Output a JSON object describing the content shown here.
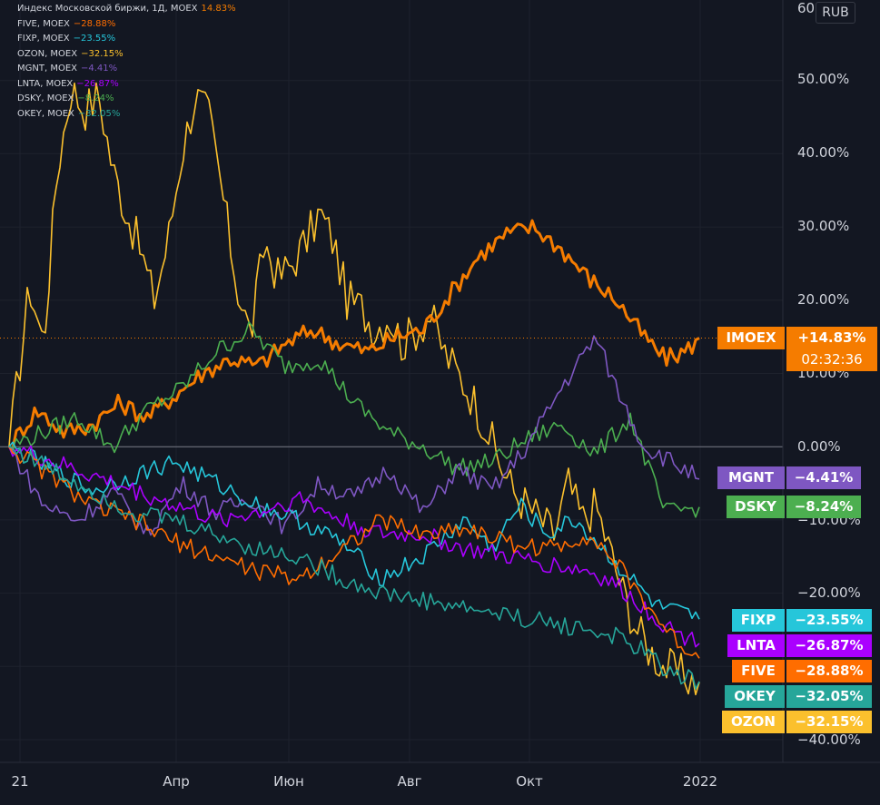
{
  "legend": [
    {
      "label": "Индекс Московской биржи, 1Д, MOEX",
      "value": "14.83%",
      "color": "#f57c00"
    },
    {
      "label": "FIVE, MOEX",
      "value": "−28.88%",
      "color": "#ff6d00"
    },
    {
      "label": "FIXP, MOEX",
      "value": "−23.55%",
      "color": "#26c6da"
    },
    {
      "label": "OZON, MOEX",
      "value": "−32.15%",
      "color": "#fbc02d"
    },
    {
      "label": "MGNT, MOEX",
      "value": "−4.41%",
      "color": "#7e57c2"
    },
    {
      "label": "LNTA, MOEX",
      "value": "−26.87%",
      "color": "#aa00ff"
    },
    {
      "label": "DSKY, MOEX",
      "value": "−8.24%",
      "color": "#4caf50"
    },
    {
      "label": "OKEY, MOEX",
      "value": "−32.05%",
      "color": "#26a69a"
    }
  ],
  "currency": "RUB",
  "y_ticks": [
    "60",
    "50.00%",
    "40.00%",
    "30.00%",
    "20.00%",
    "10.00%",
    "0.00%",
    "−10.00%",
    "−20.00%",
    "−40.00%"
  ],
  "x_ticks": [
    "21",
    "Апр",
    "Июн",
    "Авг",
    "Окт",
    "2022"
  ],
  "price_tags": [
    {
      "ticker": "IMOEX",
      "value": "+14.83%",
      "extra": "02:32:36",
      "color": "#f57c00"
    },
    {
      "ticker": "MGNT",
      "value": "−4.41%",
      "color": "#7e57c2"
    },
    {
      "ticker": "DSKY",
      "value": "−8.24%",
      "color": "#4caf50"
    },
    {
      "ticker": "FIXP",
      "value": "−23.55%",
      "color": "#26c6da"
    },
    {
      "ticker": "LNTA",
      "value": "−26.87%",
      "color": "#aa00ff"
    },
    {
      "ticker": "FIVE",
      "value": "−28.88%",
      "color": "#ff6d00"
    },
    {
      "ticker": "OKEY",
      "value": "−32.05%",
      "color": "#26a69a"
    },
    {
      "ticker": "OZON",
      "value": "−32.15%",
      "color": "#fbc02d"
    }
  ],
  "chart_data": {
    "type": "line",
    "ylim": [
      -40,
      60
    ],
    "series": [
      {
        "name": "OZON, MOEX",
        "color": "#fbc02d",
        "x": [
          0,
          0.03,
          0.05,
          0.07,
          0.09,
          0.11,
          0.13,
          0.15,
          0.17,
          0.19,
          0.21,
          0.23,
          0.25,
          0.27,
          0.29,
          0.31,
          0.33,
          0.35,
          0.37,
          0.39,
          0.41,
          0.43,
          0.45,
          0.47,
          0.49,
          0.51,
          0.53,
          0.55,
          0.57,
          0.59,
          0.61,
          0.63,
          0.65,
          0.67,
          0.69,
          0.71,
          0.73,
          0.75,
          0.77,
          0.79,
          0.81,
          0.83,
          0.85,
          0.87,
          0.89,
          0.91,
          0.93,
          0.95,
          0.97,
          1.0
        ],
        "y": [
          0,
          22,
          14,
          38,
          49,
          46,
          48,
          38,
          32,
          27,
          20,
          28,
          40,
          48,
          45,
          34,
          22,
          15,
          28,
          23,
          25,
          28,
          32,
          28,
          20,
          19,
          16,
          18,
          14,
          16,
          18,
          13,
          10,
          7,
          3,
          -2,
          -6,
          -8,
          -10,
          -12,
          -5,
          -10,
          -8,
          -14,
          -20,
          -25,
          -28,
          -30,
          -31,
          -32.15
        ]
      },
      {
        "name": "Индекс Московской биржи, 1Д, MOEX",
        "color": "#f57c00",
        "x": [
          0,
          0.04,
          0.08,
          0.12,
          0.16,
          0.2,
          0.24,
          0.28,
          0.32,
          0.36,
          0.4,
          0.44,
          0.48,
          0.52,
          0.56,
          0.6,
          0.64,
          0.68,
          0.72,
          0.76,
          0.8,
          0.84,
          0.88,
          0.92,
          0.95,
          0.98,
          1.0
        ],
        "y": [
          0,
          5,
          2,
          3,
          6,
          4,
          7,
          10,
          12,
          11,
          14,
          16,
          14,
          13,
          15,
          16,
          21,
          26,
          29,
          30,
          27,
          23,
          20,
          15,
          12,
          13,
          14.83
        ]
      },
      {
        "name": "DSKY, MOEX",
        "color": "#4caf50",
        "x": [
          0,
          0.05,
          0.1,
          0.15,
          0.2,
          0.25,
          0.3,
          0.35,
          0.4,
          0.45,
          0.5,
          0.55,
          0.6,
          0.65,
          0.7,
          0.75,
          0.8,
          0.85,
          0.9,
          0.95,
          1.0
        ],
        "y": [
          0,
          2,
          4,
          0,
          5,
          8,
          13,
          16,
          11,
          12,
          6,
          2,
          0,
          -3,
          -2,
          1,
          3,
          -1,
          4,
          -9,
          -8.24
        ]
      },
      {
        "name": "MGNT, MOEX",
        "color": "#7e57c2",
        "x": [
          0,
          0.05,
          0.1,
          0.15,
          0.2,
          0.25,
          0.3,
          0.35,
          0.4,
          0.45,
          0.5,
          0.55,
          0.6,
          0.65,
          0.7,
          0.75,
          0.8,
          0.85,
          0.88,
          0.92,
          0.96,
          1.0
        ],
        "y": [
          0,
          -8,
          -10,
          -6,
          -12,
          -5,
          -9,
          -7,
          -11,
          -5,
          -7,
          -3,
          -9,
          -3,
          -6,
          0,
          8,
          15,
          8,
          0,
          -2,
          -4.41
        ]
      },
      {
        "name": "FIXP, MOEX",
        "color": "#26c6da",
        "x": [
          0,
          0.06,
          0.12,
          0.18,
          0.24,
          0.3,
          0.36,
          0.42,
          0.48,
          0.54,
          0.6,
          0.66,
          0.7,
          0.74,
          0.78,
          0.82,
          0.86,
          0.9,
          0.94,
          1.0
        ],
        "y": [
          0,
          -3,
          -6,
          -4,
          -2,
          -5,
          -8,
          -10,
          -13,
          -18,
          -15,
          -10,
          -14,
          -8,
          -12,
          -10,
          -14,
          -18,
          -22,
          -23.55
        ]
      },
      {
        "name": "LNTA, MOEX",
        "color": "#aa00ff",
        "x": [
          0,
          0.06,
          0.12,
          0.18,
          0.24,
          0.3,
          0.36,
          0.42,
          0.48,
          0.54,
          0.6,
          0.66,
          0.72,
          0.78,
          0.84,
          0.88,
          0.92,
          0.96,
          1.0
        ],
        "y": [
          0,
          -2,
          -4,
          -6,
          -8,
          -10,
          -9,
          -7,
          -10,
          -12,
          -12,
          -14,
          -15,
          -16,
          -17,
          -19,
          -22,
          -25,
          -26.87
        ]
      },
      {
        "name": "FIVE, MOEX",
        "color": "#ff6d00",
        "x": [
          0,
          0.06,
          0.12,
          0.18,
          0.24,
          0.3,
          0.36,
          0.42,
          0.48,
          0.54,
          0.6,
          0.66,
          0.72,
          0.78,
          0.84,
          0.88,
          0.92,
          0.96,
          1.0
        ],
        "y": [
          0,
          -4,
          -8,
          -10,
          -13,
          -15,
          -17,
          -18,
          -14,
          -10,
          -12,
          -11,
          -13,
          -14,
          -12,
          -16,
          -21,
          -26,
          -28.88
        ]
      },
      {
        "name": "OKEY, MOEX",
        "color": "#26a69a",
        "x": [
          0,
          0.06,
          0.12,
          0.18,
          0.24,
          0.3,
          0.36,
          0.42,
          0.48,
          0.54,
          0.6,
          0.66,
          0.72,
          0.78,
          0.84,
          0.88,
          0.92,
          0.96,
          1.0
        ],
        "y": [
          0,
          -3,
          -6,
          -9,
          -10,
          -12,
          -14,
          -15,
          -18,
          -20,
          -21,
          -22,
          -23,
          -24,
          -25,
          -26,
          -28,
          -31,
          -32.05
        ]
      }
    ]
  }
}
